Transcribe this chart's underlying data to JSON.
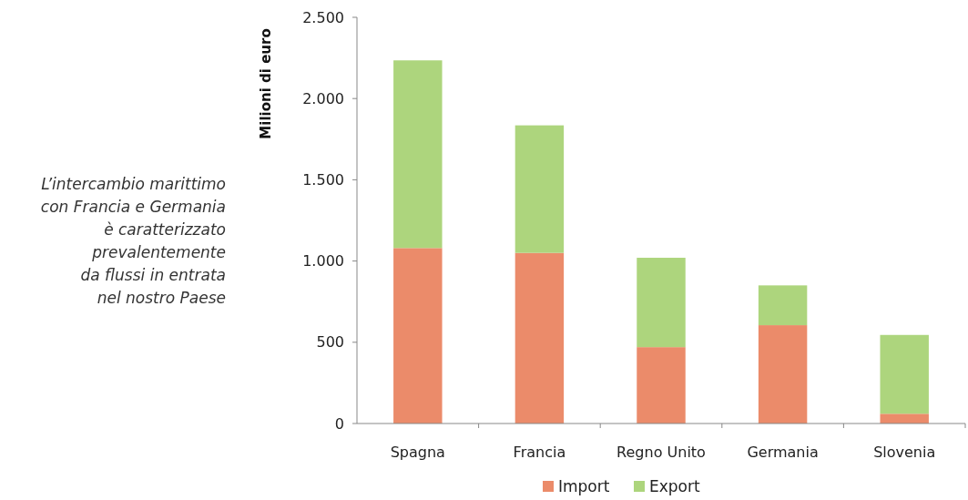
{
  "chart_data": {
    "type": "bar",
    "stacked": true,
    "ylabel": "Milioni di euro",
    "annotations": [
      "L’intercambio marittimo\ncon Francia e Germania\nè caratterizzato\nprevalentemente\nda flussi in entrata\nnel nostro Paese"
    ],
    "categories": [
      "Spagna",
      "Francia",
      "Regno Unito",
      "Germania",
      "Slovenia"
    ],
    "series": [
      {
        "name": "Import",
        "color": "#eb8b6a",
        "values": [
          1080,
          1050,
          470,
          605,
          60
        ]
      },
      {
        "name": "Export",
        "color": "#add57d",
        "values": [
          1155,
          785,
          550,
          245,
          485
        ]
      }
    ],
    "ylim": [
      0,
      2500
    ],
    "yticks": [
      {
        "value": 0,
        "label": "0"
      },
      {
        "value": 500,
        "label": "500"
      },
      {
        "value": 1000,
        "label": "1.000"
      },
      {
        "value": 1500,
        "label": "1.500"
      },
      {
        "value": 2000,
        "label": "2.000"
      },
      {
        "value": 2500,
        "label": "2.500"
      }
    ],
    "grid": false,
    "legend": "bottom"
  }
}
